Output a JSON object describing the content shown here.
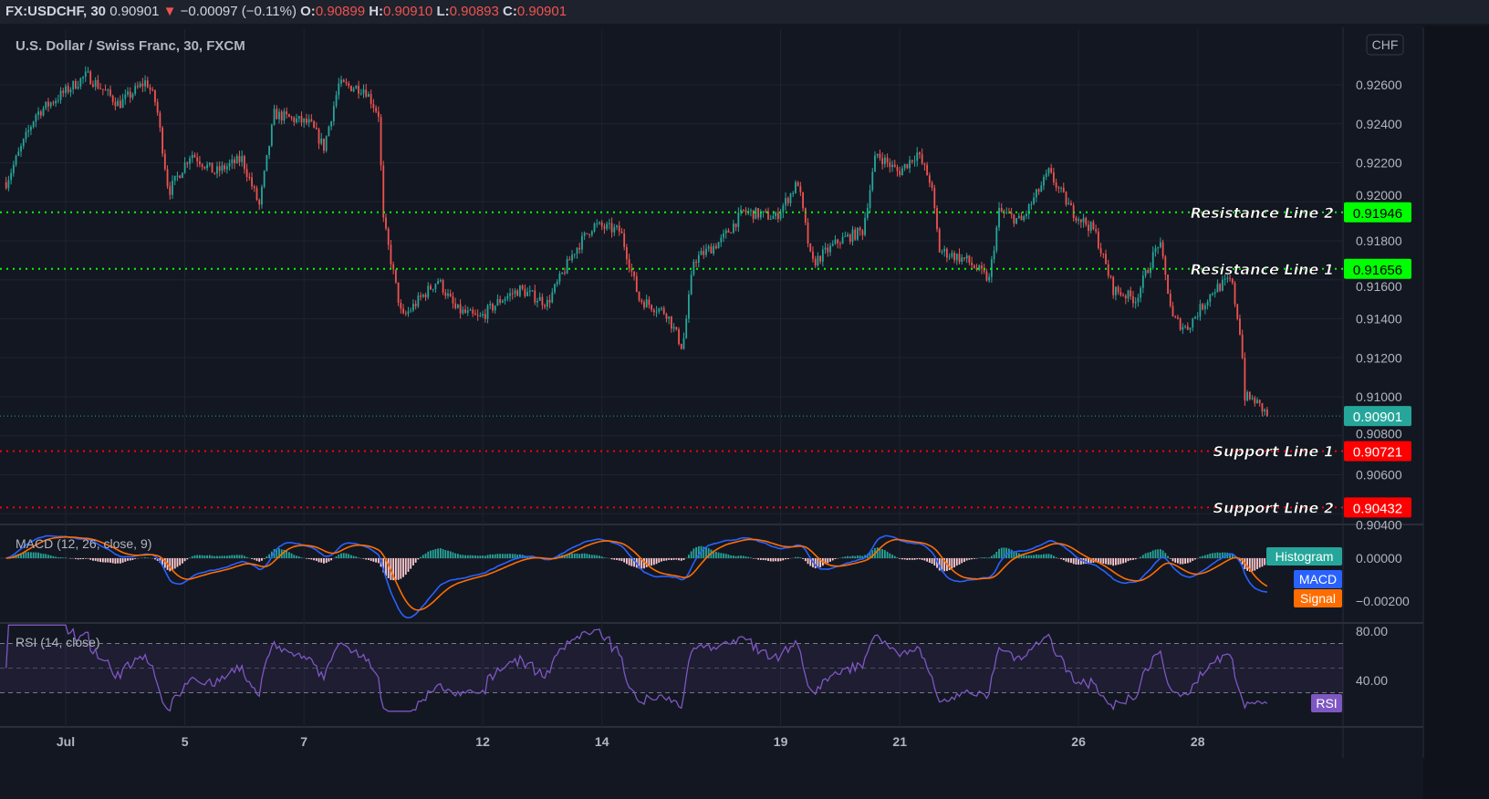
{
  "header": {
    "symbol": "FX:USDCHF, 30",
    "last": "0.90901",
    "change": "−0.00097 (−0.11%)",
    "o_label": "O:",
    "o": "0.90899",
    "h_label": "H:",
    "h": "0.90910",
    "l_label": "L:",
    "l": "0.90893",
    "c_label": "C:",
    "c": "0.90901",
    "direction_icon": "triangle-down-icon"
  },
  "chart_title": "U.S. Dollar / Swiss Franc, 30, FXCM",
  "currency_badge": "CHF",
  "colors": {
    "background": "#131722",
    "up": "#26a69a",
    "down": "#ef5350",
    "resistance": "#00ff00",
    "support": "#ff0000",
    "macd": "#2962ff",
    "signal": "#ff6d00",
    "rsi": "#7e57c2",
    "last_price": "#26a69a"
  },
  "chart_data": {
    "type": "candlestick",
    "interval": "30",
    "x_tick_labels": [
      "Jul",
      "5",
      "7",
      "12",
      "14",
      "19",
      "21",
      "26",
      "28"
    ],
    "y_tick_labels": [
      "0.92600",
      "0.92400",
      "0.92200",
      "0.92000",
      "0.91800",
      "0.91600",
      "0.91400",
      "0.91200",
      "0.91000",
      "0.90800",
      "0.90600",
      "0.90400"
    ],
    "ylim": [
      0.9037,
      0.9287
    ],
    "close_path": [
      [
        "Jun 30 00:00",
        0.921
      ],
      [
        "Jun 30 12:00",
        0.9245
      ],
      [
        "Jul 1 08:30",
        0.9265
      ],
      [
        "Jul 1 21:30",
        0.925
      ],
      [
        "Jul 2 08:30",
        0.9262
      ],
      [
        "Jul 2 12:30",
        0.925
      ],
      [
        "Jul 2 17:30",
        0.9205
      ],
      [
        "Jul 5 02:30",
        0.9225
      ],
      [
        "Jul 5 12:00",
        0.9215
      ],
      [
        "Jul 5 23:00",
        0.9222
      ],
      [
        "Jul 6 06:00",
        0.9198
      ],
      [
        "Jul 6 12:00",
        0.9245
      ],
      [
        "Jul 7 02:30",
        0.924
      ],
      [
        "Jul 7 08:00",
        0.9228
      ],
      [
        "Jul 7 14:00",
        0.926
      ],
      [
        "Jul 8 00:30",
        0.9258
      ],
      [
        "Jul 8 06:00",
        0.9245
      ],
      [
        "Jul 8 08:00",
        0.919
      ],
      [
        "Jul 8 11:00",
        0.917
      ],
      [
        "Jul 8 15:30",
        0.914
      ],
      [
        "Jul 8 22:30",
        0.915
      ],
      [
        "Jul 9 06:00",
        0.916
      ],
      [
        "Jul 9 13:00",
        0.9145
      ],
      [
        "Jul 9 22:30",
        0.914
      ],
      [
        "Jul 12 07:30",
        0.915
      ],
      [
        "Jul 12 15:00",
        0.9155
      ],
      [
        "Jul 13 02:00",
        0.9148
      ],
      [
        "Jul 13 13:00",
        0.9175
      ],
      [
        "Jul 13 20:30",
        0.9188
      ],
      [
        "Jul 14 07:30",
        0.9185
      ],
      [
        "Jul 14 15:00",
        0.915
      ],
      [
        "Jul 15 02:00",
        0.9143
      ],
      [
        "Jul 15 08:30",
        0.9125
      ],
      [
        "Jul 15 13:00",
        0.917
      ],
      [
        "Jul 16 00:00",
        0.918
      ],
      [
        "Jul 16 09:00",
        0.9195
      ],
      [
        "Jul 16 22:00",
        0.9192
      ],
      [
        "Jul 19 07:00",
        0.921
      ],
      [
        "Jul 19 12:30",
        0.9168
      ],
      [
        "Jul 19 23:30",
        0.918
      ],
      [
        "Jul 20 09:00",
        0.9185
      ],
      [
        "Jul 20 14:30",
        0.9225
      ],
      [
        "Jul 20 23:30",
        0.9215
      ],
      [
        "Jul 21 07:00",
        0.9225
      ],
      [
        "Jul 21 12:30",
        0.921
      ],
      [
        "Jul 21 16:00",
        0.9175
      ],
      [
        "Jul 22 03:00",
        0.917
      ],
      [
        "Jul 22 12:00",
        0.916
      ],
      [
        "Jul 22 16:00",
        0.9195
      ],
      [
        "Jul 23 01:00",
        0.919
      ],
      [
        "Jul 23 12:00",
        0.9215
      ],
      [
        "Jul 23 21:30",
        0.9195
      ],
      [
        "Jul 26 06:30",
        0.9185
      ],
      [
        "Jul 26 14:00",
        0.9155
      ],
      [
        "Jul 26 23:00",
        0.915
      ],
      [
        "Jul 27 08:30",
        0.918
      ],
      [
        "Jul 27 14:00",
        0.914
      ],
      [
        "Jul 27 19:30",
        0.9135
      ],
      [
        "Jul 28 06:30",
        0.9155
      ],
      [
        "Jul 28 13:30",
        0.916
      ],
      [
        "Jul 28 17:30",
        0.913
      ],
      [
        "Jul 28 19:00",
        0.91
      ],
      [
        "Jul 28 23:00",
        0.9098
      ],
      [
        "Jul 29 04:30",
        0.90901
      ]
    ],
    "last_price": 0.90901,
    "horizontal_lines": [
      {
        "label": "Resistance Line 2",
        "value": 0.91946,
        "value_text": "0.91946",
        "kind": "resistance"
      },
      {
        "label": "Resistance Line 1",
        "value": 0.91656,
        "value_text": "0.91656",
        "kind": "resistance"
      },
      {
        "label": "Support Line 1",
        "value": 0.90721,
        "value_text": "0.90721",
        "kind": "support"
      },
      {
        "label": "Support Line 2",
        "value": 0.90432,
        "value_text": "0.90432",
        "kind": "support"
      }
    ]
  },
  "macd": {
    "title": "MACD (12, 26, close, 9)",
    "tick_labels": [
      "0.00000",
      "−0.00200"
    ],
    "legend": [
      "Histogram",
      "MACD",
      "Signal"
    ]
  },
  "rsi": {
    "title": "RSI (14, close)",
    "tick_labels": [
      "80.00",
      "40.00"
    ],
    "legend": "RSI",
    "bands": [
      70,
      30
    ]
  }
}
